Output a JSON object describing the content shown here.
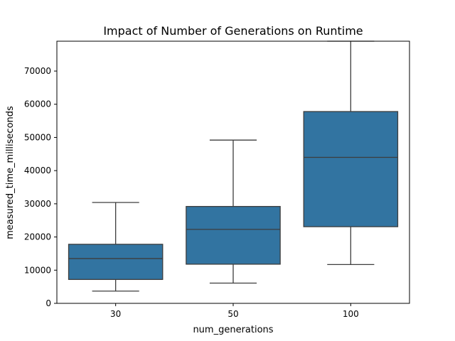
{
  "chart_data": {
    "type": "box",
    "title": "Impact of Number of Generations on Runtime",
    "xlabel": "num_generations",
    "ylabel": "measured_time_milliseconds",
    "categories": [
      "30",
      "50",
      "100"
    ],
    "ylim": [
      0,
      79000
    ],
    "yticks": [
      0,
      10000,
      20000,
      30000,
      40000,
      50000,
      60000,
      70000
    ],
    "box_color": "#3274a1",
    "line_color": "#3d3d3d",
    "boxes": [
      {
        "category": "30",
        "whisker_low": 3700,
        "q1": 7200,
        "median": 13500,
        "q3": 17800,
        "whisker_high": 30400
      },
      {
        "category": "50",
        "whisker_low": 6100,
        "q1": 11800,
        "median": 22300,
        "q3": 29200,
        "whisker_high": 49200
      },
      {
        "category": "100",
        "whisker_low": 11700,
        "q1": 23100,
        "median": 44000,
        "q3": 57800,
        "whisker_high": 79000
      }
    ],
    "grid": false,
    "legend": "none"
  }
}
